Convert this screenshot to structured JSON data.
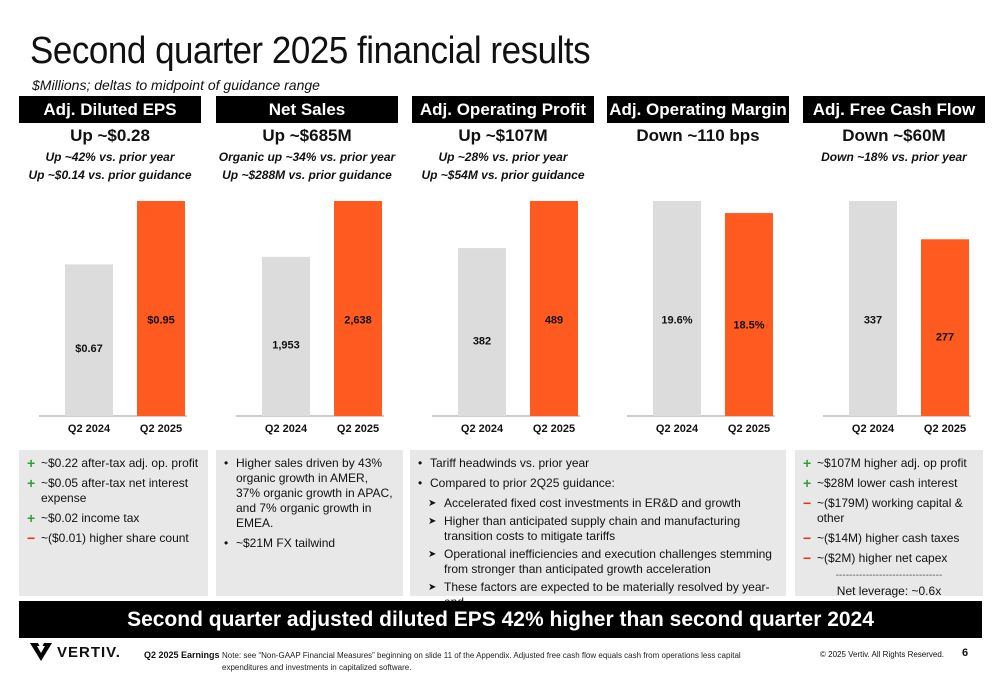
{
  "title": "Second quarter 2025 financial results",
  "subtitle": "$Millions; deltas to midpoint of guidance range",
  "colors": {
    "prior": "#dcdcdc",
    "current": "#ff5a1f",
    "header": "#000000"
  },
  "panels": [
    {
      "header": "Adj. Diluted EPS",
      "headline": "Up ~$0.28",
      "sub1": "Up ~42% vs. prior year",
      "sub2": "Up ~$0.14 vs. prior guidance"
    },
    {
      "header": "Net Sales",
      "headline": "Up ~$685M",
      "sub1": "Organic up ~34% vs. prior year",
      "sub2": "Up ~$288M vs. prior guidance"
    },
    {
      "header": "Adj. Operating Profit",
      "headline": "Up ~$107M",
      "sub1": "Up ~28% vs. prior year",
      "sub2": "Up ~$54M vs. prior guidance"
    },
    {
      "header": "Adj. Operating Margin",
      "headline": "Down ~110 bps",
      "sub1": "",
      "sub2": ""
    },
    {
      "header": "Adj. Free Cash Flow",
      "headline": "Down ~$60M",
      "sub1": "Down ~18% vs. prior year",
      "sub2": ""
    }
  ],
  "chart_data": [
    {
      "type": "bar",
      "title": "Adj. Diluted EPS",
      "categories": [
        "Q2 2024",
        "Q2 2025"
      ],
      "values": [
        0.67,
        0.95
      ],
      "labels": [
        "$0.67",
        "$0.95"
      ]
    },
    {
      "type": "bar",
      "title": "Net Sales",
      "categories": [
        "Q2 2024",
        "Q2 2025"
      ],
      "values": [
        1953,
        2638
      ],
      "labels": [
        "1,953",
        "2,638"
      ]
    },
    {
      "type": "bar",
      "title": "Adj. Operating Profit",
      "categories": [
        "Q2 2024",
        "Q2 2025"
      ],
      "values": [
        382,
        489
      ],
      "labels": [
        "382",
        "489"
      ]
    },
    {
      "type": "bar",
      "title": "Adj. Operating Margin",
      "categories": [
        "Q2 2024",
        "Q2 2025"
      ],
      "values": [
        19.6,
        18.5
      ],
      "labels": [
        "19.6%",
        "18.5%"
      ]
    },
    {
      "type": "bar",
      "title": "Adj. Free Cash Flow",
      "categories": [
        "Q2 2024",
        "Q2 2025"
      ],
      "values": [
        337,
        277
      ],
      "labels": [
        "337",
        "277"
      ]
    }
  ],
  "notes": {
    "eps": [
      {
        "sign": "+",
        "text": "~$0.22 after-tax adj. op. profit"
      },
      {
        "sign": "+",
        "text": "~$0.05 after-tax net interest expense"
      },
      {
        "sign": "+",
        "text": "~$0.02 income tax"
      },
      {
        "sign": "−",
        "text": "~($0.01) higher share count"
      }
    ],
    "sales": [
      "Higher sales driven by 43% organic growth in AMER, 37% organic growth in APAC, and 7% organic growth in EMEA.",
      "~$21M FX tailwind"
    ],
    "profit_intro": "Tariff headwinds vs. prior year",
    "profit_intro2": "Compared to prior 2Q25 guidance:",
    "profit_items": [
      "Accelerated fixed cost investments in ER&D and growth",
      "Higher than anticipated supply chain and manufacturing transition costs to mitigate tariffs",
      "Operational inefficiencies and execution challenges stemming from stronger than anticipated growth acceleration",
      "These factors are expected to be materially resolved by year-end"
    ],
    "fcf": [
      {
        "sign": "+",
        "text": "~$107M higher adj. op profit"
      },
      {
        "sign": "+",
        "text": "~$28M lower cash interest"
      },
      {
        "sign": "−",
        "text": "~($179M) working capital & other"
      },
      {
        "sign": "−",
        "text": "~($14M) higher cash taxes"
      },
      {
        "sign": "−",
        "text": "~($2M) higher net capex"
      }
    ],
    "divider": "--------------------------------",
    "leverage": "Net leverage:  ~0.6x"
  },
  "banner": "Second quarter adjusted diluted EPS 42% higher than second quarter 2024",
  "footer": {
    "logo": "VERTIV.",
    "earnings": "Q2 2025 Earnings",
    "note": "Note: see “Non-GAAP Financial Measures” beginning on slide 11 of the Appendix.  Adjusted free cash flow equals cash from operations less capital expenditures and investments in capitalized software.",
    "copyright": "© 2025 Vertiv. All Rights Reserved.",
    "page": "6"
  }
}
